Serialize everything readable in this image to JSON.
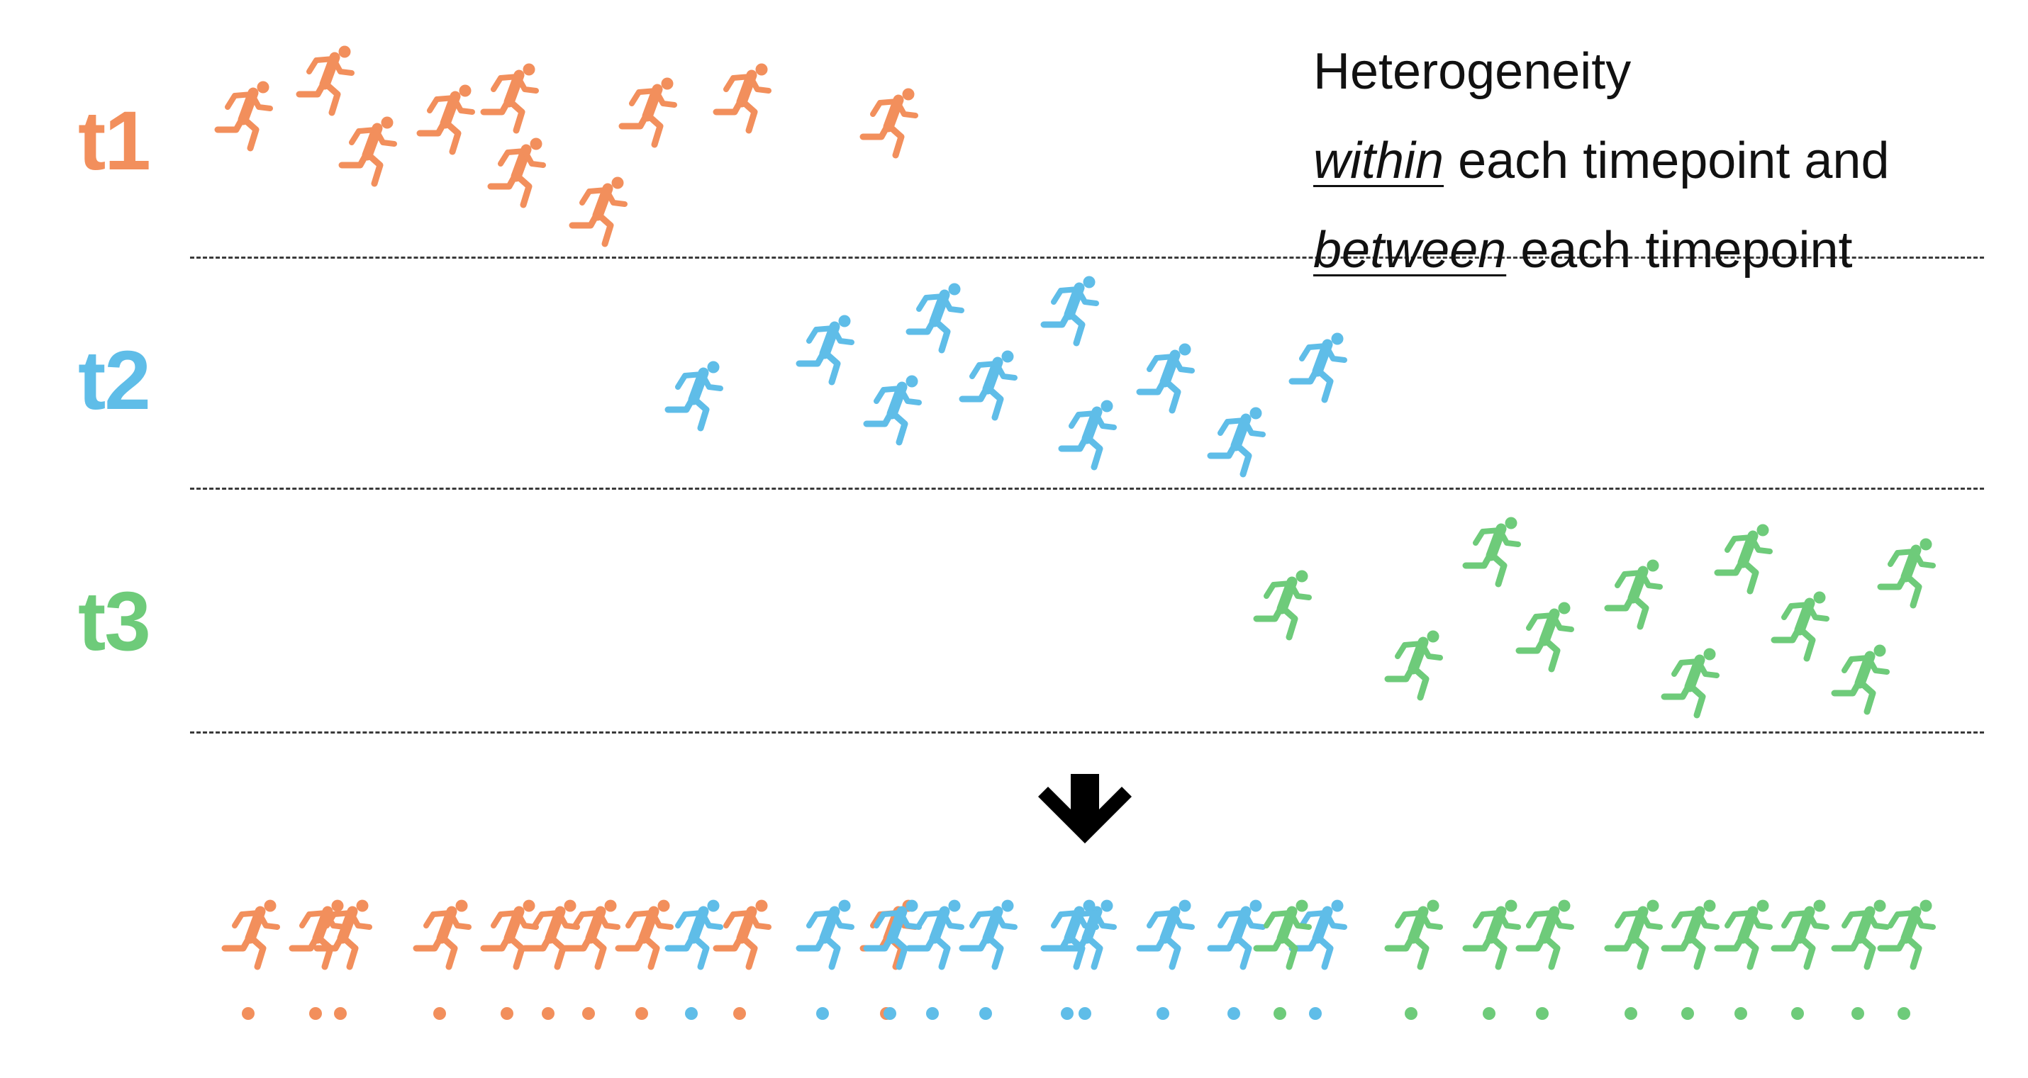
{
  "colors": {
    "t1": "#f28f5c",
    "t2": "#5fbde8",
    "t3": "#6ecb7a",
    "text": "#111111",
    "arrow": "#000000"
  },
  "icon_name": "running-person-icon",
  "rows": [
    {
      "label": "t1",
      "color_key": "t1"
    },
    {
      "label": "t2",
      "color_key": "t2"
    },
    {
      "label": "t3",
      "color_key": "t3"
    }
  ],
  "caption": {
    "line1": "Heterogeneity",
    "line2_emph": "within",
    "line2_rest": " each timepoint and",
    "line3_emph": "between",
    "line3_rest": " each timepoint"
  },
  "arrow": {
    "icon_name": "down-arrow-icon"
  }
}
